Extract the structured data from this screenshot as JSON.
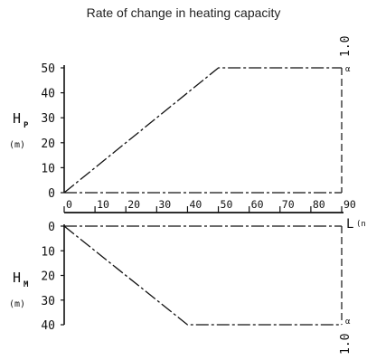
{
  "chart_data": {
    "type": "line",
    "title": "Rate of change in heating capacity",
    "x_label": "L",
    "x_label_clipped": "(n",
    "x_ticks": [
      0,
      10,
      20,
      30,
      40,
      50,
      60,
      70,
      80,
      90
    ],
    "xlim": [
      0,
      90
    ],
    "top_panel": {
      "ylabel_main": "H",
      "ylabel_sub": "P",
      "ylabel_unit": "(m)",
      "y_ticks": [
        0,
        10,
        20,
        30,
        40,
        50
      ],
      "ylim": [
        0,
        50
      ],
      "series": [
        {
          "points": [
            [
              0,
              0
            ],
            [
              50,
              50
            ],
            [
              90,
              50
            ]
          ],
          "style": "dash-dot"
        },
        {
          "points": [
            [
              0,
              0
            ],
            [
              90,
              0
            ]
          ],
          "style": "dash-dot"
        }
      ],
      "right_label": "1.0",
      "right_marker": "α"
    },
    "bottom_panel": {
      "ylabel_main": "H",
      "ylabel_sub": "M",
      "ylabel_unit": "(m)",
      "y_ticks": [
        0,
        10,
        20,
        30,
        40
      ],
      "ylim": [
        0,
        40
      ],
      "inverted": true,
      "series": [
        {
          "points": [
            [
              0,
              0
            ],
            [
              40,
              40
            ],
            [
              90,
              40
            ]
          ],
          "style": "dash-dot"
        },
        {
          "points": [
            [
              0,
              0
            ],
            [
              90,
              0
            ]
          ],
          "style": "dash-dot"
        }
      ],
      "right_label": "1.0",
      "right_marker": "α"
    }
  }
}
